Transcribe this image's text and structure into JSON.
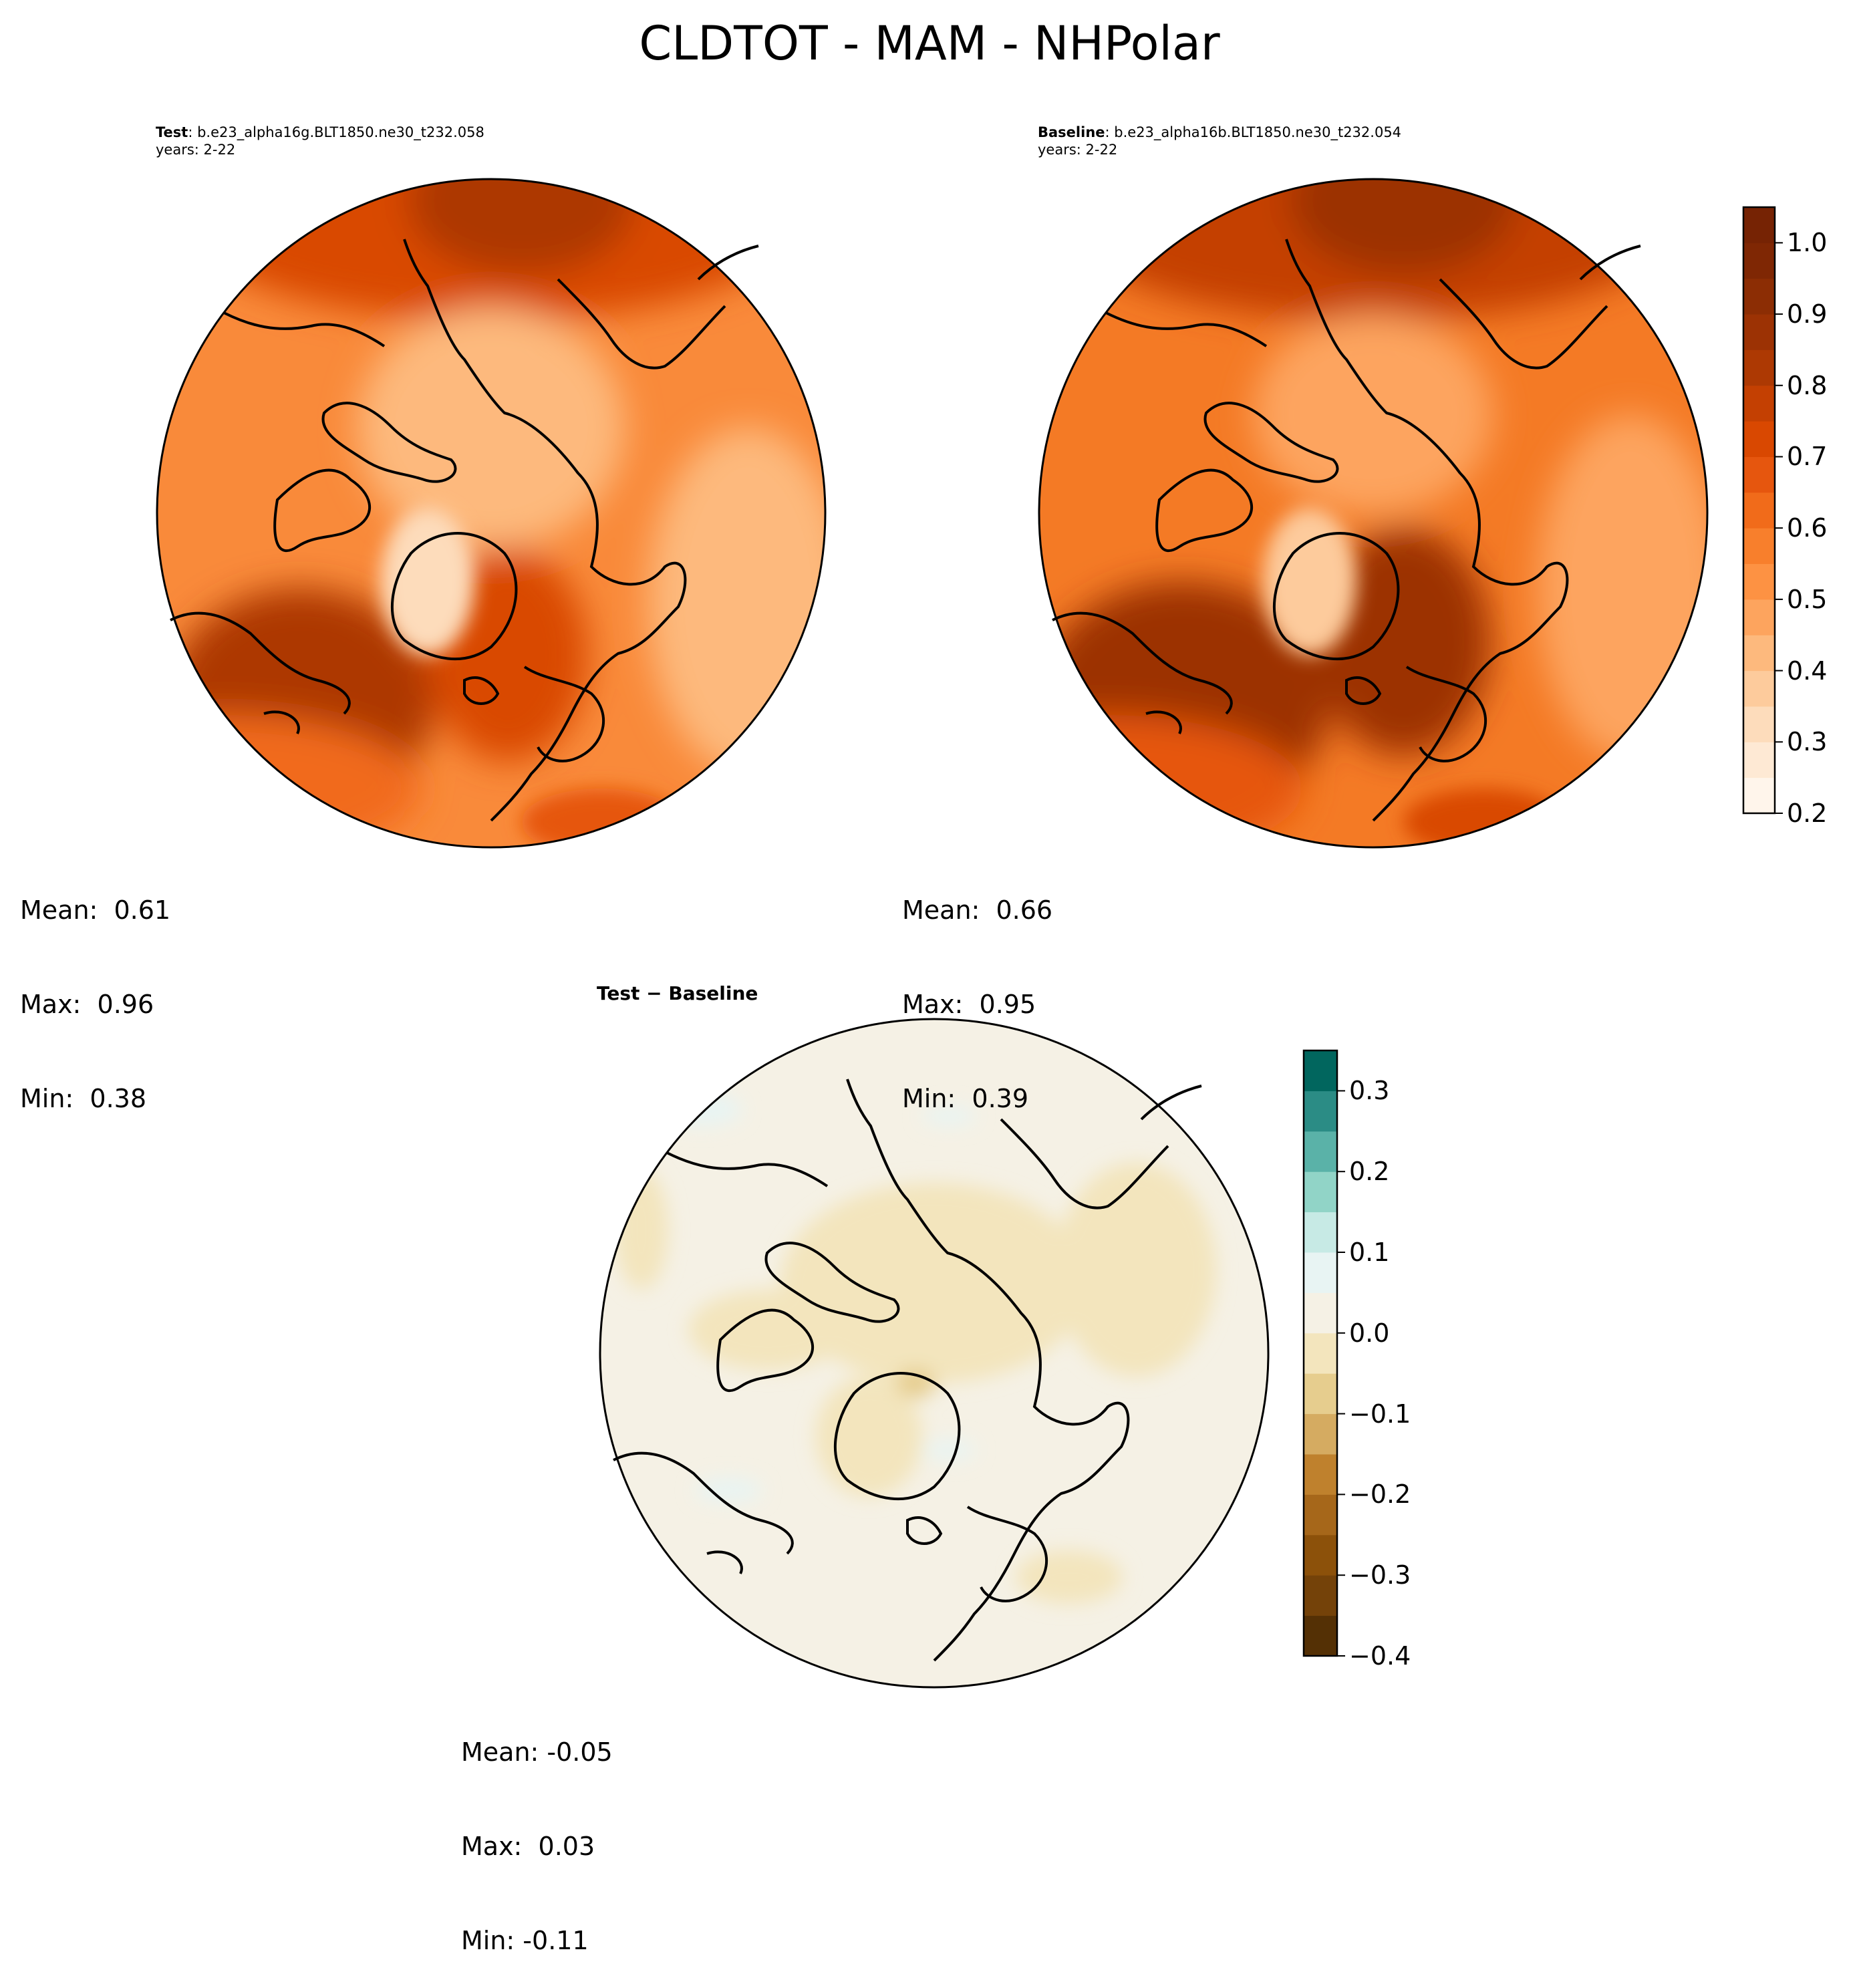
{
  "figure": {
    "title": "CLDTOT - MAM - NHPolar"
  },
  "panels": {
    "test": {
      "label_bold": "Test",
      "label_rest": ": b.e23_alpha16g.BLT1850.ne30_t232.058",
      "years": "years: 2-22",
      "stats": {
        "mean": "Mean:  0.61",
        "max": "Max:  0.96",
        "min": "Min:  0.38"
      }
    },
    "baseline": {
      "label_bold": "Baseline",
      "label_rest": ": b.e23_alpha16b.BLT1850.ne30_t232.054",
      "years": "years: 2-22",
      "stats": {
        "mean": "Mean:  0.66",
        "max": "Max:  0.95",
        "min": "Min:  0.39"
      }
    },
    "difference": {
      "label": "Test − Baseline",
      "stats": {
        "mean": "Mean: -0.05",
        "max": "Max:  0.03",
        "min": "Min: -0.11"
      }
    }
  },
  "colorbars": {
    "main": {
      "ticks": [
        "0.2",
        "0.3",
        "0.4",
        "0.5",
        "0.6",
        "0.7",
        "0.8",
        "0.9",
        "1.0"
      ],
      "tick_values": [
        0.2,
        0.3,
        0.4,
        0.5,
        0.6,
        0.7,
        0.8,
        0.9,
        1.0
      ],
      "range": [
        0.2,
        1.05
      ],
      "levels": 17,
      "colors": [
        "#fff5eb",
        "#fee9d4",
        "#fddcbb",
        "#fdcb9c",
        "#fdb97d",
        "#fda45e",
        "#fd9243",
        "#f87f2c",
        "#f16b1a",
        "#e6560e",
        "#d94801",
        "#c44002",
        "#ad3903",
        "#9c3204",
        "#8c2d04",
        "#7f2704",
        "#762304"
      ]
    },
    "diff": {
      "ticks": [
        "0.3",
        "0.2",
        "0.1",
        "0.0",
        "−0.1",
        "−0.2",
        "−0.3",
        "−0.4"
      ],
      "tick_values": [
        0.3,
        0.2,
        0.1,
        0.0,
        -0.1,
        -0.2,
        -0.3,
        -0.4
      ],
      "range": [
        -0.4,
        0.35
      ],
      "levels": 15,
      "colors": [
        "#543005",
        "#744209",
        "#8c510a",
        "#a6671a",
        "#bf812d",
        "#d5ab61",
        "#e6cd8e",
        "#f3e5bd",
        "#f5f1e5",
        "#e8f4f3",
        "#c7eae5",
        "#91d4c7",
        "#5ab2a8",
        "#2b8c85",
        "#01665e"
      ]
    }
  },
  "map_colors": {
    "coast": "#000000",
    "test": {
      "base": "#f98a3a",
      "bands": [
        "#d94801",
        "#ad3903",
        "#f16b1a",
        "#fdb97d",
        "#fddcbb",
        "#e6560e"
      ]
    },
    "baseline": {
      "base": "#f47a25",
      "bands": [
        "#c44002",
        "#9c3204",
        "#e6560e",
        "#fda45e",
        "#fdcb9c",
        "#d94801"
      ]
    },
    "difference": {
      "base": "#f5f1e5",
      "bands": [
        "#f3e5bd",
        "#e6cd8e",
        "#e8f4f3",
        "#d5ab61"
      ]
    }
  }
}
